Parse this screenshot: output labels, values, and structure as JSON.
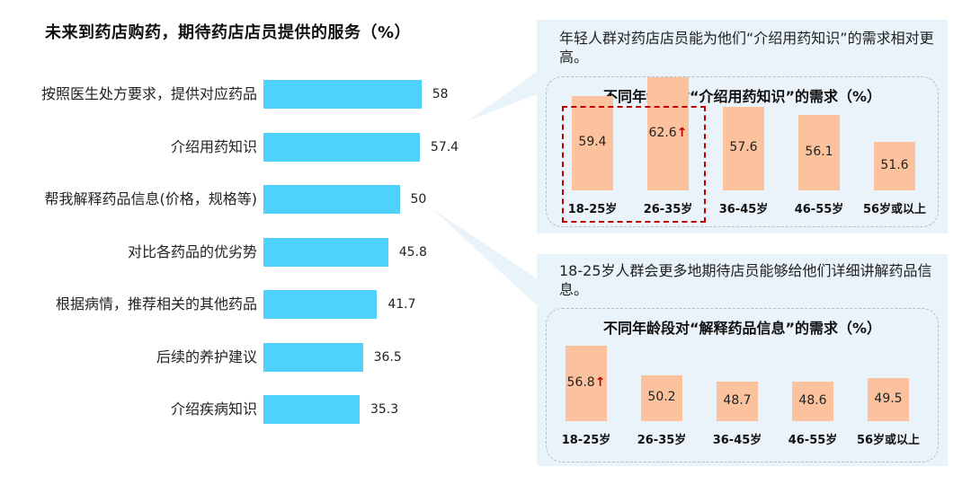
{
  "left_chart": {
    "title": "未来到药店购药，期待药店店员提供的服务（%）",
    "chart_data": {
      "type": "bar",
      "orientation": "horizontal",
      "categories": [
        "按照医生处方要求，提供对应药品",
        "介绍用药知识",
        "帮我解释药品信息(价格，规格等)",
        "对比各药品的优劣势",
        "根据病情，推荐相关的其他药品",
        "后续的养护建议",
        "介绍疾病知识"
      ],
      "values": [
        58,
        57.4,
        50,
        45.8,
        41.7,
        36.5,
        35.3
      ],
      "value_labels": [
        "58",
        "57.4",
        "50",
        "45.8",
        "41.7",
        "36.5",
        "35.3"
      ],
      "xlim": [
        0,
        100
      ],
      "color": "#4fd2f9"
    }
  },
  "top_panel": {
    "description": "年轻人群对药店店员能为他们“介绍用药知识”的需求相对更高。",
    "chart_data": {
      "type": "bar",
      "title": "不同年龄段对“介绍用药知识”的需求（%）",
      "categories": [
        "18-25岁",
        "26-35岁",
        "36-45岁",
        "46-55岁",
        "56岁或以上"
      ],
      "values": [
        59.4,
        62.6,
        57.6,
        56.1,
        51.6
      ],
      "value_labels": [
        "59.4",
        "62.6",
        "57.6",
        "56.1",
        "51.6"
      ],
      "highlight_arrow_index": 1,
      "highlight_box_categories": [
        "18-25岁",
        "26-35岁"
      ],
      "color": "#fcc29d"
    }
  },
  "bottom_panel": {
    "description": "18-25岁人群会更多地期待店员能够给他们详细讲解药品信息。",
    "chart_data": {
      "type": "bar",
      "title": "不同年龄段对“解释药品信息”的需求（%）",
      "categories": [
        "18-25岁",
        "26-35岁",
        "36-45岁",
        "46-55岁",
        "56岁或以上"
      ],
      "values": [
        56.8,
        50.2,
        48.7,
        48.6,
        49.5
      ],
      "value_labels": [
        "56.8",
        "50.2",
        "48.7",
        "48.6",
        "49.5"
      ],
      "highlight_arrow_index": 0,
      "color": "#fcc29d"
    }
  },
  "arrow_glyph": "↑",
  "colors": {
    "accent_red": "#c00000",
    "panel_bg": "#e9f3fa"
  }
}
